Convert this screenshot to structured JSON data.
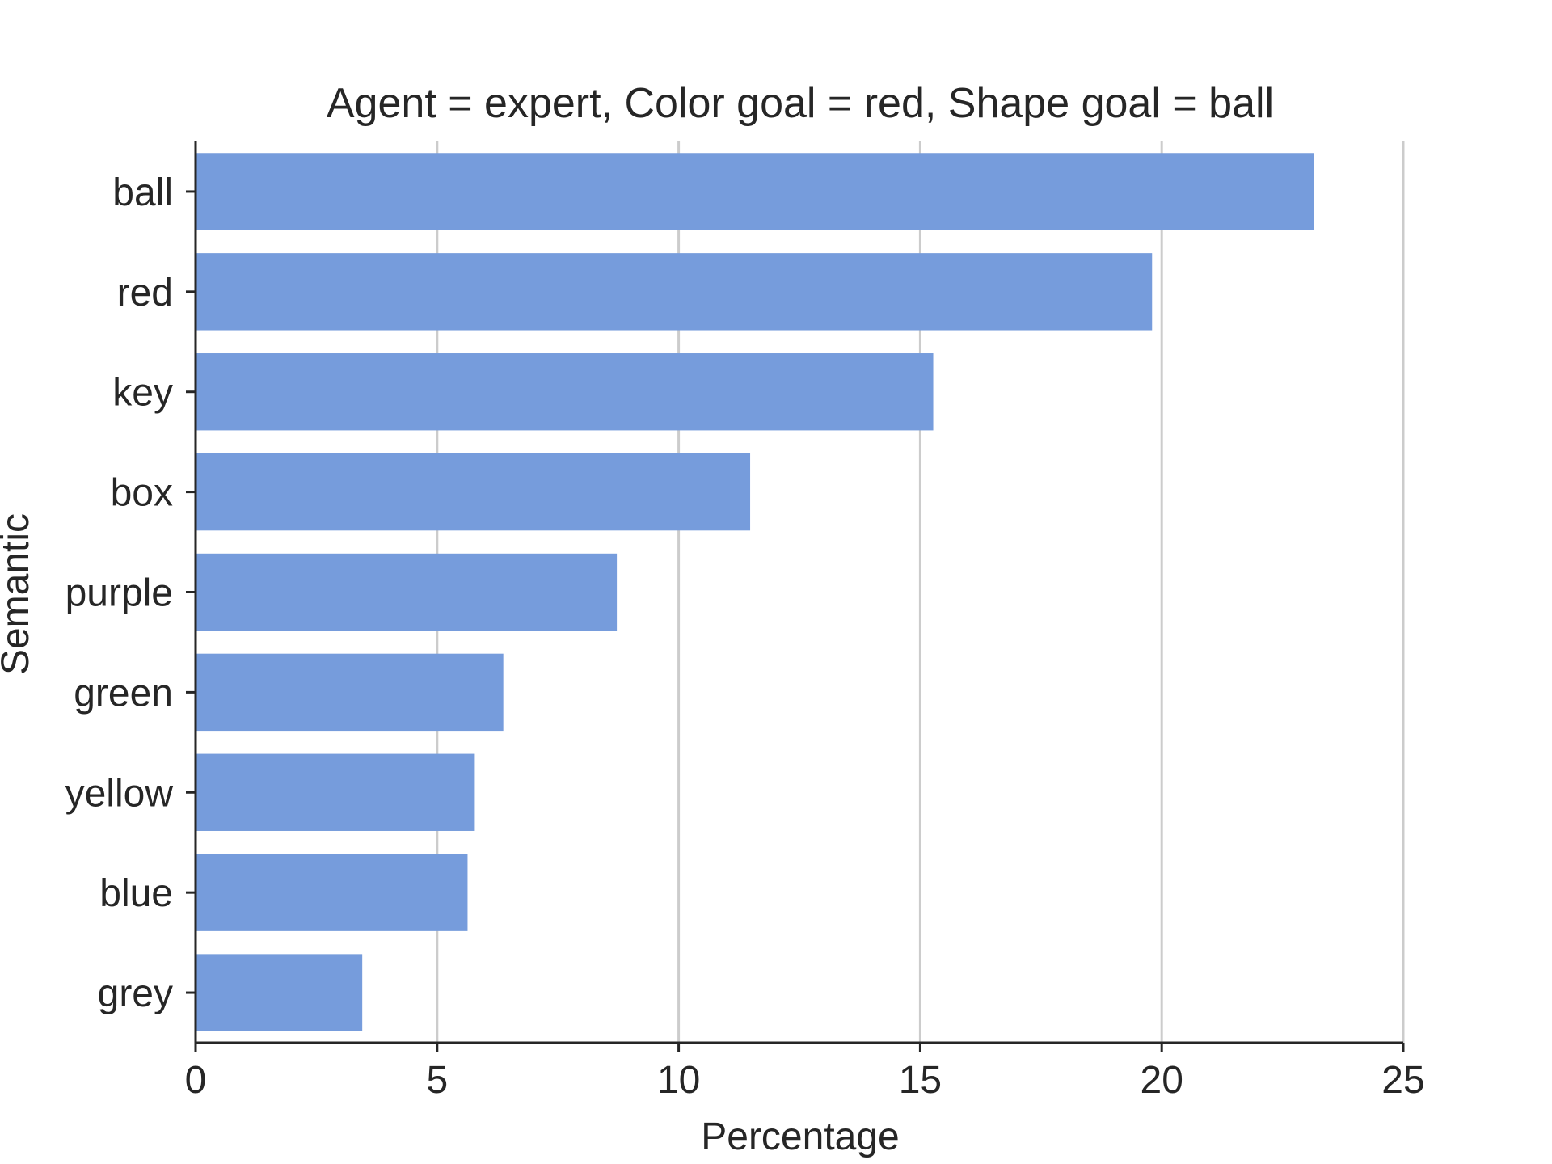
{
  "chart_data": {
    "type": "bar",
    "orientation": "horizontal",
    "title": "Agent = expert, Color goal = red, Shape goal = ball",
    "xlabel": "Percentage",
    "ylabel": "Semantic",
    "categories": [
      "ball",
      "red",
      "key",
      "box",
      "purple",
      "green",
      "yellow",
      "blue",
      "grey"
    ],
    "values": [
      23.15,
      19.8,
      15.27,
      11.48,
      8.72,
      6.37,
      5.78,
      5.63,
      3.45
    ],
    "xlim": [
      0,
      25
    ],
    "xticks": [
      0,
      5,
      10,
      15,
      20,
      25
    ],
    "grid": "vertical",
    "colors": {
      "bar": "#769cdc",
      "grid": "#cccccc",
      "axis": "#262626"
    }
  }
}
